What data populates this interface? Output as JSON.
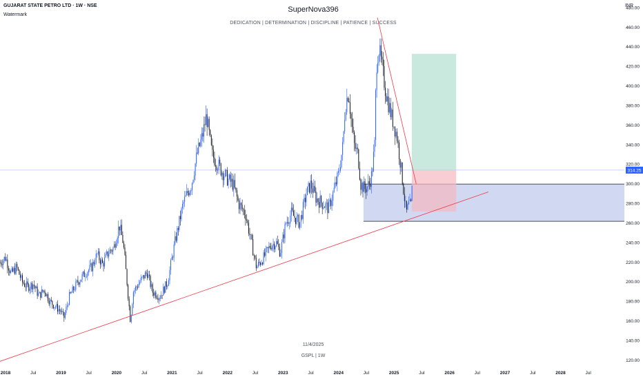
{
  "header": {
    "symbol": "GUJARAT STATE PETRO LTD · 1W · NSE",
    "subtitle": "Watermark",
    "currency": "INR"
  },
  "watermark": {
    "title": "SuperNova396",
    "tagline": "DEDICATION | DETERMINATION | DISCIPLINE | PATIENCE | SUCCESS",
    "date": "11/4/2025",
    "symbol": "GSPL | 1W"
  },
  "chart_data": {
    "type": "candlestick",
    "title": "GUJARAT STATE PETRO LTD · 1W · NSE",
    "ylabel": "INR",
    "ylim": [
      115,
      488
    ],
    "xlim": [
      2017.9,
      2029.15
    ],
    "y_ticks": [
      120,
      140,
      160,
      180,
      200,
      220,
      240,
      260,
      280,
      300,
      320,
      340,
      360,
      380,
      400,
      420,
      440,
      460,
      480
    ],
    "x_ticks": [
      {
        "label": "2018",
        "x": 2018.0,
        "bold": true
      },
      {
        "label": "Jul",
        "x": 2018.5,
        "bold": false
      },
      {
        "label": "2019",
        "x": 2019.0,
        "bold": true
      },
      {
        "label": "Jul",
        "x": 2019.5,
        "bold": false
      },
      {
        "label": "2020",
        "x": 2020.0,
        "bold": true
      },
      {
        "label": "Jul",
        "x": 2020.5,
        "bold": false
      },
      {
        "label": "2021",
        "x": 2021.0,
        "bold": true
      },
      {
        "label": "Jul",
        "x": 2021.5,
        "bold": false
      },
      {
        "label": "2022",
        "x": 2022.0,
        "bold": true
      },
      {
        "label": "Jul",
        "x": 2022.5,
        "bold": false
      },
      {
        "label": "2023",
        "x": 2023.0,
        "bold": true
      },
      {
        "label": "Jul",
        "x": 2023.5,
        "bold": false
      },
      {
        "label": "2024",
        "x": 2024.0,
        "bold": true
      },
      {
        "label": "Jul",
        "x": 2024.5,
        "bold": false
      },
      {
        "label": "2025",
        "x": 2025.0,
        "bold": true
      },
      {
        "label": "Jul",
        "x": 2025.5,
        "bold": false
      },
      {
        "label": "2026",
        "x": 2026.0,
        "bold": true
      },
      {
        "label": "Jul",
        "x": 2026.5,
        "bold": false
      },
      {
        "label": "2027",
        "x": 2027.0,
        "bold": true
      },
      {
        "label": "Jul",
        "x": 2027.5,
        "bold": false
      },
      {
        "label": "2028",
        "x": 2028.0,
        "bold": true
      },
      {
        "label": "Jul",
        "x": 2028.5,
        "bold": false
      }
    ],
    "price_path": [
      [
        2017.9,
        220
      ],
      [
        2018.0,
        225
      ],
      [
        2018.1,
        208
      ],
      [
        2018.2,
        215
      ],
      [
        2018.3,
        200
      ],
      [
        2018.4,
        195
      ],
      [
        2018.5,
        198
      ],
      [
        2018.6,
        186
      ],
      [
        2018.7,
        192
      ],
      [
        2018.8,
        180
      ],
      [
        2018.9,
        175
      ],
      [
        2019.0,
        170
      ],
      [
        2019.05,
        163
      ],
      [
        2019.15,
        185
      ],
      [
        2019.3,
        200
      ],
      [
        2019.45,
        210
      ],
      [
        2019.55,
        215
      ],
      [
        2019.65,
        228
      ],
      [
        2019.75,
        218
      ],
      [
        2019.85,
        230
      ],
      [
        2019.95,
        235
      ],
      [
        2020.05,
        258
      ],
      [
        2020.12,
        240
      ],
      [
        2020.18,
        205
      ],
      [
        2020.25,
        160
      ],
      [
        2020.3,
        190
      ],
      [
        2020.42,
        200
      ],
      [
        2020.55,
        210
      ],
      [
        2020.65,
        190
      ],
      [
        2020.78,
        185
      ],
      [
        2020.92,
        200
      ],
      [
        2021.05,
        240
      ],
      [
        2021.2,
        280
      ],
      [
        2021.35,
        300
      ],
      [
        2021.45,
        330
      ],
      [
        2021.55,
        350
      ],
      [
        2021.62,
        370
      ],
      [
        2021.72,
        330
      ],
      [
        2021.88,
        315
      ],
      [
        2022.0,
        305
      ],
      [
        2022.1,
        300
      ],
      [
        2022.2,
        280
      ],
      [
        2022.32,
        270
      ],
      [
        2022.45,
        235
      ],
      [
        2022.52,
        215
      ],
      [
        2022.65,
        225
      ],
      [
        2022.78,
        238
      ],
      [
        2022.88,
        240
      ],
      [
        2022.95,
        230
      ],
      [
        2023.05,
        260
      ],
      [
        2023.15,
        270
      ],
      [
        2023.3,
        260
      ],
      [
        2023.42,
        290
      ],
      [
        2023.5,
        300
      ],
      [
        2023.6,
        285
      ],
      [
        2023.72,
        280
      ],
      [
        2023.82,
        275
      ],
      [
        2023.9,
        290
      ],
      [
        2024.0,
        310
      ],
      [
        2024.08,
        340
      ],
      [
        2024.12,
        380
      ],
      [
        2024.18,
        395
      ],
      [
        2024.22,
        370
      ],
      [
        2024.28,
        340
      ],
      [
        2024.35,
        330
      ],
      [
        2024.4,
        300
      ],
      [
        2024.48,
        295
      ],
      [
        2024.55,
        300
      ],
      [
        2024.6,
        310
      ],
      [
        2024.65,
        340
      ],
      [
        2024.68,
        420
      ],
      [
        2024.72,
        440
      ],
      [
        2024.78,
        420
      ],
      [
        2024.85,
        395
      ],
      [
        2024.95,
        370
      ],
      [
        2025.05,
        350
      ],
      [
        2025.12,
        320
      ],
      [
        2025.17,
        295
      ],
      [
        2025.22,
        270
      ],
      [
        2025.27,
        280
      ],
      [
        2025.3,
        275
      ],
      [
        2025.33,
        300
      ]
    ],
    "support_zone": {
      "x": [
        2024.45,
        2029.15
      ],
      "y": [
        262,
        300
      ]
    },
    "trade_box": {
      "x": [
        2025.32,
        2026.12
      ],
      "entry": 314.25,
      "stop": 272,
      "target": 433
    },
    "trendlines": [
      {
        "name": "rising support",
        "x": [
          2017.9,
          2026.7
        ],
        "y": [
          119,
          292
        ],
        "color": "#f23645"
      },
      {
        "name": "falling resistance",
        "x": [
          2024.7,
          2025.4
        ],
        "y": [
          470,
          300
        ],
        "color": "#f23645"
      }
    ],
    "last_price": 314.25,
    "last_price_label": "314.25",
    "grid": false,
    "colors": {
      "up": "#2962ff",
      "down": "#131722",
      "support_zone": "#b2bfe9",
      "target_fill": "#b2dfd0",
      "stop_fill": "#f5b8c0",
      "trendline": "#f23645",
      "last_price_line": "#2962ff",
      "axis_text": "#131722"
    }
  }
}
